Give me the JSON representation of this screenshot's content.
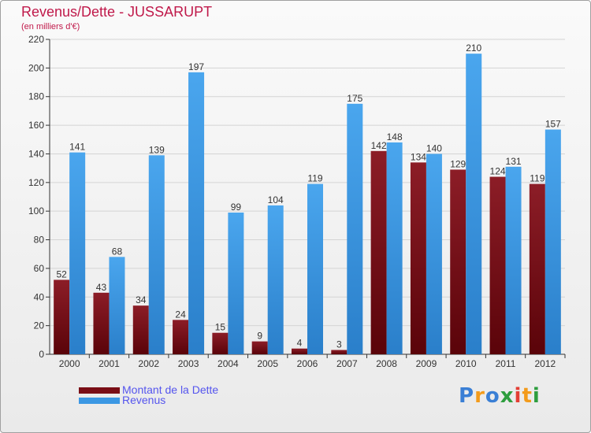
{
  "title": "Revenus/Dette - JUSSARUPT",
  "subtitle": "(en milliers d'€)",
  "logo": {
    "text": "Proxiti",
    "colors": [
      "#3a7fd5",
      "#f39b1b",
      "#3a7fd5",
      "#2e9e3e",
      "#e33e34",
      "#f39b1b",
      "#2e9e3e"
    ]
  },
  "legend": [
    {
      "label": "Montant de la Dette",
      "color": "#7a0e16"
    },
    {
      "label": "Revenus",
      "color": "#3b97e3"
    }
  ],
  "chart_data": {
    "type": "bar",
    "title": "Revenus/Dette - JUSSARUPT",
    "subtitle": "(en milliers d'€)",
    "categories": [
      "2000",
      "2001",
      "2002",
      "2003",
      "2004",
      "2005",
      "2006",
      "2007",
      "2008",
      "2009",
      "2010",
      "2011",
      "2012"
    ],
    "series": [
      {
        "name": "Montant de la Dette",
        "color": "#7a0e16",
        "values": [
          52,
          43,
          34,
          24,
          15,
          9,
          4,
          3,
          142,
          134,
          129,
          124,
          119
        ]
      },
      {
        "name": "Revenus",
        "color": "#3b97e3",
        "values": [
          141,
          68,
          139,
          197,
          99,
          104,
          119,
          175,
          148,
          140,
          210,
          131,
          157
        ]
      }
    ],
    "ylim": [
      0,
      220
    ],
    "yticks": [
      0,
      20,
      40,
      60,
      80,
      100,
      120,
      140,
      160,
      180,
      200,
      220
    ],
    "grid": true,
    "legend_position": "bottom-left"
  }
}
